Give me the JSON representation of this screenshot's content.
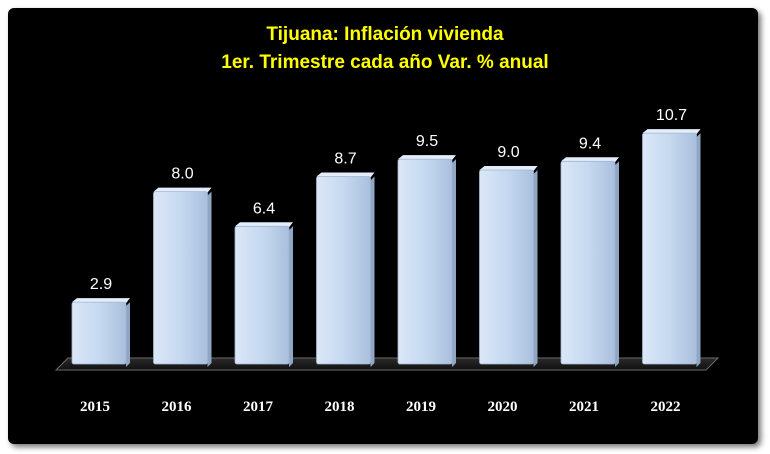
{
  "chart_data": {
    "type": "bar",
    "title": "Tijuana: Inflación vivienda",
    "subtitle": "1er. Trimestre cada año Var. % anual",
    "categories": [
      "2015",
      "2016",
      "2017",
      "2018",
      "2019",
      "2020",
      "2021",
      "2022"
    ],
    "values": [
      2.9,
      8.0,
      6.4,
      8.7,
      9.5,
      9.0,
      9.4,
      10.7
    ],
    "data_labels": [
      "2.9",
      "8.0",
      "6.4",
      "8.7",
      "9.5",
      "9.0",
      "9.4",
      "10.7"
    ],
    "ylim": [
      0,
      12
    ],
    "grid": false,
    "legend": "none",
    "colors": {
      "background": "#000000",
      "bar": "#c6d9f0",
      "title": "#ffff00",
      "data_label": "#ffffff",
      "tick_label": "#ffffff"
    }
  }
}
